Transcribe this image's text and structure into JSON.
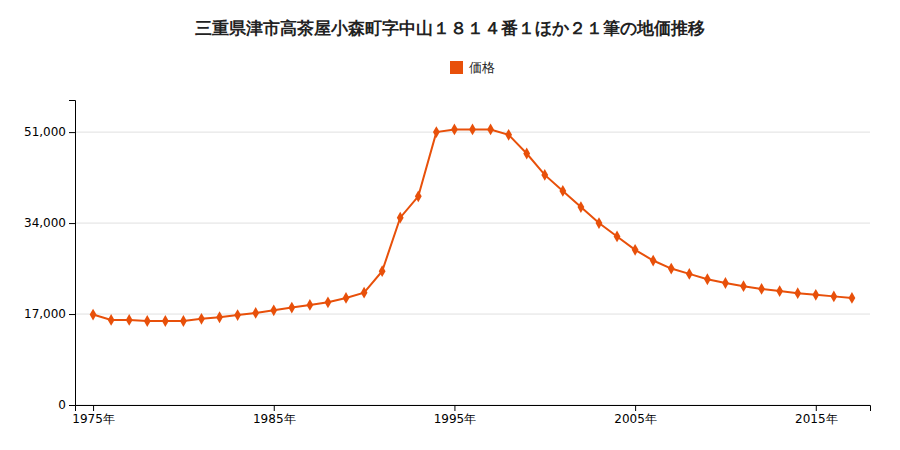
{
  "chart_data": {
    "type": "line",
    "title": "三重県津市高茶屋小森町字中山１８１４番１ほか２１筆の地価推移",
    "x": [
      1975,
      1976,
      1977,
      1978,
      1979,
      1980,
      1981,
      1982,
      1983,
      1984,
      1985,
      1986,
      1987,
      1988,
      1989,
      1990,
      1991,
      1992,
      1993,
      1994,
      1995,
      1996,
      1997,
      1998,
      1999,
      2000,
      2001,
      2002,
      2003,
      2004,
      2005,
      2006,
      2007,
      2008,
      2009,
      2010,
      2011,
      2012,
      2013,
      2014,
      2015,
      2016,
      2017
    ],
    "series": [
      {
        "name": "価格",
        "color": "#e8500a",
        "marker": "diamond",
        "line_style": "solid",
        "values": [
          16900,
          15900,
          15900,
          15700,
          15700,
          15700,
          16100,
          16400,
          16800,
          17200,
          17700,
          18200,
          18700,
          19200,
          20000,
          21000,
          25000,
          35000,
          39000,
          51000,
          51500,
          51500,
          51500,
          50500,
          47000,
          43000,
          40000,
          37000,
          34000,
          31500,
          29000,
          27000,
          25500,
          24500,
          23500,
          22800,
          22200,
          21700,
          21300,
          20900,
          20600,
          20300,
          20000
        ]
      }
    ],
    "xlim": [
      1974,
      2018
    ],
    "xticks": [
      {
        "value": 1975,
        "label": "1975年"
      },
      {
        "value": 1985,
        "label": "1985年"
      },
      {
        "value": 1995,
        "label": "1995年"
      },
      {
        "value": 2005,
        "label": "2005年"
      },
      {
        "value": 2015,
        "label": "2015年"
      }
    ],
    "ylim": [
      0,
      57000
    ],
    "yticks": [
      0,
      {
        "value": 17000,
        "label": "17,000"
      },
      {
        "value": 34000,
        "label": "34,000"
      },
      {
        "value": 51000,
        "label": "51,000"
      }
    ],
    "grid": "y",
    "legend": "top"
  }
}
